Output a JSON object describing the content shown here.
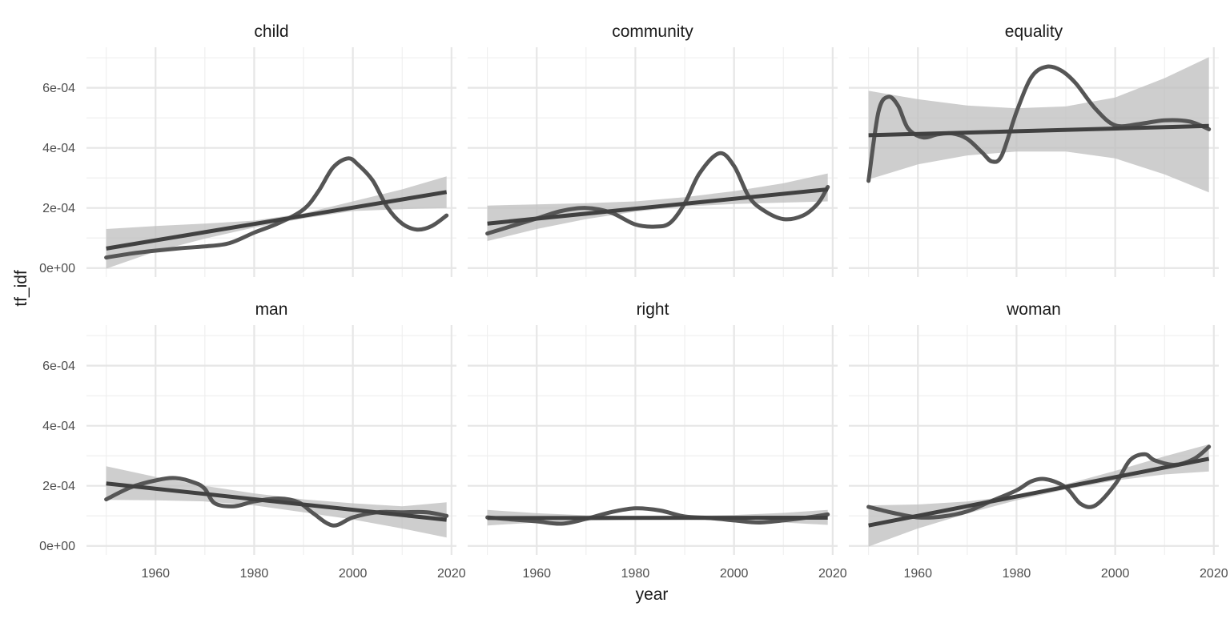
{
  "chart_data": {
    "type": "line",
    "xlabel": "year",
    "ylabel": "tf_idf",
    "xlim": [
      1946,
      2021
    ],
    "ylim": [
      -3e-05,
      0.000735
    ],
    "x_ticks": [
      1960,
      1980,
      2000,
      2020
    ],
    "x_tick_labels": [
      "1960",
      "1980",
      "2000",
      "2020"
    ],
    "y_ticks": [
      0,
      0.0002,
      0.0004,
      0.0006
    ],
    "y_tick_labels": [
      "0e+00",
      "2e-04",
      "4e-04",
      "6e-04"
    ],
    "grid": true,
    "layout": {
      "rows": 2,
      "cols": 3
    },
    "panels": [
      {
        "title": "child",
        "smooth": {
          "x": [
            1950,
            1955,
            1960,
            1965,
            1970,
            1975,
            1980,
            1985,
            1990,
            1993,
            1996,
            1999,
            2001,
            2004,
            2007,
            2010,
            2013,
            2016,
            2019
          ],
          "y": [
            3.5e-05,
            4.8e-05,
            5.8e-05,
            6.6e-05,
            7.2e-05,
            8.3e-05,
            0.000118,
            0.00015,
            0.000195,
            0.000255,
            0.000335,
            0.000365,
            0.000345,
            0.000292,
            0.000202,
            0.000148,
            0.000128,
            0.00014,
            0.000175
          ]
        },
        "trend": {
          "x": [
            1950,
            2019
          ],
          "y": [
            6.5e-05,
            0.000253
          ]
        },
        "band": {
          "x": [
            1950,
            1960,
            1970,
            1980,
            1990,
            2000,
            2010,
            2019
          ],
          "lower": [
            -2e-06,
            5.5e-05,
            9.8e-05,
            0.000135,
            0.000165,
            0.00019,
            0.000196,
            0.0002
          ],
          "upper": [
            0.00013,
            0.00014,
            0.000148,
            0.000158,
            0.000182,
            0.000222,
            0.000262,
            0.000305
          ]
        }
      },
      {
        "title": "community",
        "smooth": {
          "x": [
            1950,
            1955,
            1960,
            1965,
            1970,
            1975,
            1980,
            1984,
            1987,
            1990,
            1993,
            1997,
            2000,
            2003,
            2006,
            2010,
            2014,
            2017,
            2019
          ],
          "y": [
            0.000115,
            0.00014,
            0.000165,
            0.00019,
            0.0002,
            0.000185,
            0.000145,
            0.000138,
            0.00015,
            0.000215,
            0.000315,
            0.000382,
            0.00034,
            0.000238,
            0.000192,
            0.000163,
            0.000175,
            0.000215,
            0.00027
          ]
        },
        "trend": {
          "x": [
            1950,
            2019
          ],
          "y": [
            0.000148,
            0.000262
          ]
        },
        "band": {
          "x": [
            1950,
            1960,
            1970,
            1980,
            1990,
            2000,
            2010,
            2019
          ],
          "lower": [
            9e-05,
            0.00013,
            0.000163,
            0.000188,
            0.000205,
            0.000213,
            0.000218,
            0.000222
          ],
          "upper": [
            0.000208,
            0.000212,
            0.000216,
            0.000222,
            0.000236,
            0.000256,
            0.000282,
            0.000315
          ]
        }
      },
      {
        "title": "equality",
        "smooth": {
          "x": [
            1950,
            1952,
            1954,
            1956,
            1958,
            1961,
            1964,
            1967,
            1970,
            1973,
            1975,
            1977,
            1980,
            1983,
            1986,
            1989,
            1992,
            1996,
            2000,
            2005,
            2010,
            2015,
            2019
          ],
          "y": [
            0.00029,
            0.00052,
            0.00057,
            0.00054,
            0.000465,
            0.000435,
            0.000445,
            0.000448,
            0.00043,
            0.000385,
            0.000355,
            0.000375,
            0.00052,
            0.000635,
            0.00067,
            0.000658,
            0.000615,
            0.00053,
            0.000475,
            0.00048,
            0.000492,
            0.000488,
            0.000462
          ]
        },
        "trend": {
          "x": [
            1950,
            2019
          ],
          "y": [
            0.000442,
            0.000473
          ]
        },
        "band": {
          "x": [
            1950,
            1960,
            1970,
            1980,
            1990,
            2000,
            2010,
            2019
          ],
          "lower": [
            0.000295,
            0.000345,
            0.000375,
            0.000388,
            0.000388,
            0.000365,
            0.000312,
            0.000252
          ],
          "upper": [
            0.00059,
            0.000562,
            0.000541,
            0.000532,
            0.000538,
            0.000568,
            0.000632,
            0.000702
          ]
        }
      },
      {
        "title": "man",
        "smooth": {
          "x": [
            1950,
            1955,
            1960,
            1964,
            1968,
            1970,
            1972,
            1976,
            1980,
            1985,
            1989,
            1992,
            1996,
            2000,
            2005,
            2010,
            2015,
            2019
          ],
          "y": [
            0.000155,
            0.000195,
            0.000218,
            0.000226,
            0.00021,
            0.00019,
            0.000142,
            0.000132,
            0.000148,
            0.000158,
            0.000145,
            0.000108,
            6.8e-05,
            9.5e-05,
            0.000112,
            0.000112,
            0.000112,
            0.0001
          ]
        },
        "trend": {
          "x": [
            1950,
            2019
          ],
          "y": [
            0.000208,
            8.7e-05
          ]
        },
        "band": {
          "x": [
            1950,
            1960,
            1970,
            1980,
            1990,
            2000,
            2010,
            2019
          ],
          "lower": [
            0.000153,
            0.000152,
            0.000148,
            0.000135,
            0.000112,
            8.8e-05,
            5.8e-05,
            2.8e-05
          ],
          "upper": [
            0.000265,
            0.00023,
            0.0002,
            0.000175,
            0.000155,
            0.000142,
            0.000132,
            0.000145
          ]
        }
      },
      {
        "title": "right",
        "smooth": {
          "x": [
            1950,
            1955,
            1960,
            1965,
            1970,
            1975,
            1980,
            1985,
            1990,
            1995,
            2000,
            2005,
            2010,
            2015,
            2019
          ],
          "y": [
            9.5e-05,
            8.8e-05,
            8.2e-05,
            7.4e-05,
            9e-05,
            0.000112,
            0.000125,
            0.000118,
            9.8e-05,
            9.3e-05,
            8.5e-05,
            7.8e-05,
            8.5e-05,
            9.5e-05,
            0.000105
          ]
        },
        "trend": {
          "x": [
            1950,
            2019
          ],
          "y": [
            9.3e-05,
            9.4e-05
          ]
        },
        "band": {
          "x": [
            1950,
            1960,
            1970,
            1980,
            1990,
            2000,
            2010,
            2019
          ],
          "lower": [
            6.8e-05,
            7.8e-05,
            8.4e-05,
            8.7e-05,
            8.7e-05,
            8.4e-05,
            7.8e-05,
            7e-05
          ],
          "upper": [
            0.00012,
            0.000109,
            0.000102,
            0.0001,
            0.0001,
            0.000103,
            0.00011,
            0.00012
          ]
        }
      },
      {
        "title": "woman",
        "smooth": {
          "x": [
            1950,
            1955,
            1960,
            1965,
            1970,
            1975,
            1980,
            1983,
            1986,
            1990,
            1993,
            1996,
            2000,
            2003,
            2006,
            2008,
            2012,
            2016,
            2019
          ],
          "y": [
            0.00013,
            0.00011,
            9.5e-05,
            9.8e-05,
            0.000115,
            0.00015,
            0.000185,
            0.000215,
            0.000222,
            0.000195,
            0.00014,
            0.000135,
            0.000205,
            0.000285,
            0.000305,
            0.000285,
            0.00027,
            0.00029,
            0.00033
          ]
        },
        "trend": {
          "x": [
            1950,
            2019
          ],
          "y": [
            6.8e-05,
            0.00029
          ]
        },
        "band": {
          "x": [
            1950,
            1960,
            1970,
            1980,
            1990,
            2000,
            2010,
            2019
          ],
          "lower": [
            -2e-06,
            5.8e-05,
            0.000108,
            0.000152,
            0.000188,
            0.000218,
            0.000238,
            0.000248
          ],
          "upper": [
            0.000135,
            0.000138,
            0.000148,
            0.000168,
            0.000205,
            0.00025,
            0.000298,
            0.000338
          ]
        }
      }
    ]
  }
}
